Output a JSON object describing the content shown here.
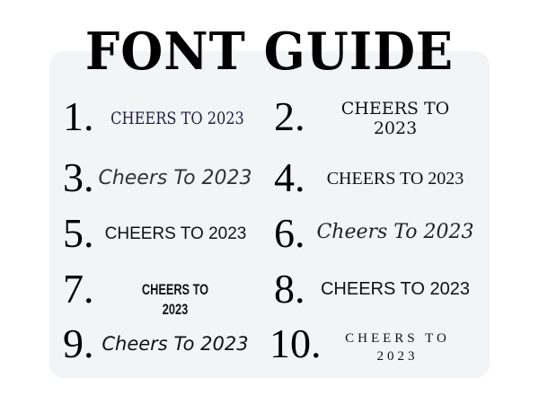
{
  "title": "FONT GUIDE",
  "items": [
    {
      "num": "1.",
      "text": "CHEERS TO 2023",
      "color": "#1e2240"
    },
    {
      "num": "2.",
      "text": "CHEERS TO 2023"
    },
    {
      "num": "3.",
      "text": "Cheers To 2023"
    },
    {
      "num": "4.",
      "text": "CHEERS TO 2023"
    },
    {
      "num": "5.",
      "text": "CHEERS TO 2023"
    },
    {
      "num": "6.",
      "text": "Cheers To 2023"
    },
    {
      "num": "7.",
      "text": "CHEERS TO 2023"
    },
    {
      "num": "8.",
      "text": "CHEERS TO 2023"
    },
    {
      "num": "9.",
      "text": "Cheers To 2023"
    },
    {
      "num": "10.",
      "text": "CHEERS TO 2023"
    }
  ]
}
